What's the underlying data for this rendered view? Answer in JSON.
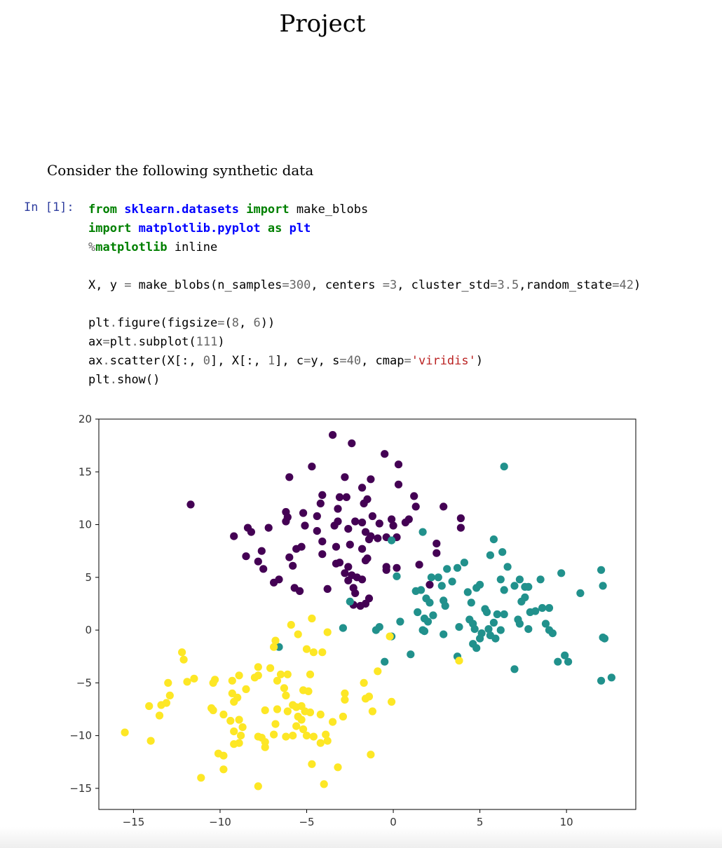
{
  "document": {
    "title": "Project",
    "intro": "Consider the following synthetic data"
  },
  "cell": {
    "prompt": "In [1]:"
  },
  "colors": {
    "class_0": "#440154",
    "class_1": "#21918c",
    "class_2": "#fde725"
  },
  "chart_data": {
    "type": "scatter",
    "title": "",
    "xlabel": "",
    "ylabel": "",
    "xlim": [
      -17,
      14
    ],
    "ylim": [
      -17,
      20
    ],
    "xticks": [
      -15,
      -10,
      -5,
      0,
      5,
      10
    ],
    "yticks": [
      -15,
      -10,
      -5,
      0,
      5,
      10,
      15,
      20
    ],
    "xtick_labels": [
      "−15",
      "−10",
      "−5",
      "0",
      "5",
      "10"
    ],
    "ytick_labels": [
      "−15",
      "−10",
      "−5",
      "0",
      "5",
      "10",
      "15",
      "20"
    ],
    "grid": false,
    "legend": "none",
    "series": [
      {
        "color": "#440154",
        "points": [
          [
            -3.5,
            18.5
          ],
          [
            -2.4,
            17.7
          ],
          [
            -0.5,
            16.7
          ],
          [
            0.3,
            15.7
          ],
          [
            -4.7,
            15.5
          ],
          [
            -6.0,
            14.5
          ],
          [
            -2.8,
            14.5
          ],
          [
            -1.3,
            14.3
          ],
          [
            -1.8,
            13.5
          ],
          [
            0.3,
            13.8
          ],
          [
            -4.1,
            12.8
          ],
          [
            -3.1,
            12.6
          ],
          [
            -2.7,
            12.6
          ],
          [
            -1.5,
            12.4
          ],
          [
            1.2,
            12.7
          ],
          [
            -4.2,
            12.0
          ],
          [
            -1.7,
            12.0
          ],
          [
            1.3,
            11.7
          ],
          [
            2.9,
            11.7
          ],
          [
            -11.7,
            11.9
          ],
          [
            -5.2,
            11.1
          ],
          [
            -3.2,
            11.5
          ],
          [
            -1.2,
            10.8
          ],
          [
            -0.1,
            10.5
          ],
          [
            -6.2,
            11.2
          ],
          [
            -6.1,
            10.7
          ],
          [
            -4.4,
            10.8
          ],
          [
            -3.2,
            10.3
          ],
          [
            -2.2,
            10.3
          ],
          [
            -1.8,
            10.2
          ],
          [
            0.7,
            10.2
          ],
          [
            0.9,
            10.5
          ],
          [
            3.9,
            10.6
          ],
          [
            -8.4,
            9.7
          ],
          [
            -7.2,
            9.7
          ],
          [
            -6.2,
            10.3
          ],
          [
            -5.1,
            9.9
          ],
          [
            -3.4,
            9.9
          ],
          [
            -0.8,
            10.1
          ],
          [
            0.0,
            9.9
          ],
          [
            3.9,
            9.7
          ],
          [
            -9.2,
            8.9
          ],
          [
            -8.2,
            9.3
          ],
          [
            -4.4,
            9.4
          ],
          [
            -2.6,
            9.6
          ],
          [
            -1.6,
            9.3
          ],
          [
            -1.3,
            8.9
          ],
          [
            -7.6,
            7.5
          ],
          [
            -5.3,
            7.9
          ],
          [
            -5.6,
            7.7
          ],
          [
            -4.1,
            8.4
          ],
          [
            -3.3,
            7.9
          ],
          [
            -2.5,
            8.1
          ],
          [
            -1.8,
            7.7
          ],
          [
            -1.4,
            8.6
          ],
          [
            -0.9,
            8.7
          ],
          [
            -0.4,
            8.8
          ],
          [
            0.2,
            8.8
          ],
          [
            2.5,
            8.2
          ],
          [
            -8.5,
            7.0
          ],
          [
            -7.8,
            6.5
          ],
          [
            -6.0,
            6.9
          ],
          [
            -4.1,
            7.2
          ],
          [
            -5.8,
            6.1
          ],
          [
            -3.3,
            6.3
          ],
          [
            -3.1,
            6.4
          ],
          [
            -1.6,
            6.6
          ],
          [
            -1.5,
            6.8
          ],
          [
            -0.4,
            6.0
          ],
          [
            0.2,
            5.9
          ],
          [
            1.5,
            6.2
          ],
          [
            -7.5,
            5.8
          ],
          [
            -6.6,
            4.8
          ],
          [
            -5.7,
            4.0
          ],
          [
            -5.4,
            3.7
          ],
          [
            -6.9,
            4.5
          ],
          [
            -2.6,
            6.0
          ],
          [
            -2.4,
            5.2
          ],
          [
            -2.1,
            5.0
          ],
          [
            -1.8,
            4.8
          ],
          [
            -2.6,
            4.7
          ],
          [
            -2.3,
            4.0
          ],
          [
            -3.8,
            3.9
          ],
          [
            -2.2,
            3.5
          ],
          [
            -2.3,
            2.4
          ],
          [
            -1.9,
            2.3
          ],
          [
            -1.6,
            2.5
          ],
          [
            -1.4,
            3.0
          ],
          [
            2.5,
            7.3
          ],
          [
            2.1,
            4.3
          ],
          [
            -0.4,
            5.7
          ],
          [
            -2.8,
            5.4
          ]
        ]
      },
      {
        "color": "#21918c",
        "points": [
          [
            6.4,
            15.5
          ],
          [
            5.8,
            8.6
          ],
          [
            6.3,
            7.4
          ],
          [
            5.6,
            7.1
          ],
          [
            1.7,
            9.3
          ],
          [
            -0.1,
            8.5
          ],
          [
            4.1,
            6.4
          ],
          [
            3.7,
            5.9
          ],
          [
            6.6,
            6.0
          ],
          [
            0.2,
            5.1
          ],
          [
            2.2,
            5.0
          ],
          [
            2.6,
            5.0
          ],
          [
            3.1,
            5.8
          ],
          [
            6.2,
            4.8
          ],
          [
            7.3,
            4.8
          ],
          [
            7.6,
            4.1
          ],
          [
            8.5,
            4.8
          ],
          [
            9.7,
            5.4
          ],
          [
            12.0,
            5.7
          ],
          [
            12.1,
            4.2
          ],
          [
            2.8,
            4.2
          ],
          [
            3.4,
            4.6
          ],
          [
            4.3,
            3.6
          ],
          [
            4.8,
            4.0
          ],
          [
            5.0,
            4.3
          ],
          [
            6.4,
            3.8
          ],
          [
            7.0,
            4.2
          ],
          [
            7.8,
            4.1
          ],
          [
            10.8,
            3.5
          ],
          [
            1.3,
            3.7
          ],
          [
            1.6,
            3.8
          ],
          [
            1.9,
            3.0
          ],
          [
            2.1,
            2.6
          ],
          [
            2.9,
            2.8
          ],
          [
            4.5,
            2.6
          ],
          [
            5.3,
            2.0
          ],
          [
            5.4,
            1.7
          ],
          [
            6.0,
            1.5
          ],
          [
            7.4,
            2.7
          ],
          [
            7.6,
            3.1
          ],
          [
            8.6,
            2.1
          ],
          [
            9.0,
            2.1
          ],
          [
            -2.5,
            2.7
          ],
          [
            1.4,
            1.7
          ],
          [
            1.8,
            1.1
          ],
          [
            2.0,
            0.8
          ],
          [
            2.3,
            1.4
          ],
          [
            3.0,
            2.3
          ],
          [
            4.4,
            1.0
          ],
          [
            4.6,
            0.6
          ],
          [
            5.8,
            0.7
          ],
          [
            6.4,
            1.5
          ],
          [
            7.2,
            1.0
          ],
          [
            7.9,
            1.7
          ],
          [
            8.2,
            1.8
          ],
          [
            8.8,
            0.6
          ],
          [
            7.3,
            0.6
          ],
          [
            7.8,
            0.1
          ],
          [
            9.0,
            0.0
          ],
          [
            9.2,
            -0.3
          ],
          [
            -2.9,
            0.2
          ],
          [
            -1.0,
            0.0
          ],
          [
            -0.8,
            0.3
          ],
          [
            0.4,
            0.8
          ],
          [
            1.7,
            0.0
          ],
          [
            2.9,
            -0.4
          ],
          [
            3.8,
            0.3
          ],
          [
            4.7,
            0.1
          ],
          [
            5.1,
            -0.3
          ],
          [
            5.5,
            0.1
          ],
          [
            5.6,
            -0.5
          ],
          [
            5.9,
            -0.8
          ],
          [
            6.2,
            0.0
          ],
          [
            4.6,
            -1.3
          ],
          [
            4.8,
            -1.7
          ],
          [
            5.0,
            -0.8
          ],
          [
            12.1,
            -0.7
          ],
          [
            12.2,
            -0.8
          ],
          [
            1.0,
            -2.3
          ],
          [
            -0.5,
            -3.0
          ],
          [
            3.7,
            -2.5
          ],
          [
            7.0,
            -3.7
          ],
          [
            9.5,
            -3.0
          ],
          [
            9.9,
            -2.4
          ],
          [
            10.1,
            -3.0
          ],
          [
            12.0,
            -4.8
          ],
          [
            12.6,
            -4.5
          ],
          [
            -6.6,
            -1.6
          ],
          [
            -0.1,
            -0.6
          ],
          [
            1.8,
            -0.1
          ]
        ]
      },
      {
        "color": "#fde725",
        "points": [
          [
            -5.9,
            0.5
          ],
          [
            -4.7,
            1.1
          ],
          [
            -5.5,
            -0.4
          ],
          [
            -6.8,
            -1.0
          ],
          [
            -6.9,
            -1.6
          ],
          [
            -3.8,
            -0.2
          ],
          [
            -5.0,
            -1.8
          ],
          [
            -4.6,
            -2.1
          ],
          [
            -4.1,
            -2.1
          ],
          [
            -0.2,
            -0.6
          ],
          [
            -12.2,
            -2.1
          ],
          [
            -12.1,
            -2.8
          ],
          [
            -13.0,
            -5.0
          ],
          [
            -12.9,
            -6.2
          ],
          [
            -13.1,
            -6.9
          ],
          [
            -13.4,
            -7.1
          ],
          [
            -14.1,
            -7.2
          ],
          [
            -13.5,
            -8.1
          ],
          [
            -11.9,
            -4.9
          ],
          [
            -11.5,
            -4.6
          ],
          [
            -10.3,
            -4.7
          ],
          [
            -10.4,
            -5.0
          ],
          [
            -9.3,
            -4.8
          ],
          [
            -8.9,
            -4.3
          ],
          [
            -7.8,
            -3.5
          ],
          [
            -7.1,
            -3.6
          ],
          [
            -7.8,
            -4.3
          ],
          [
            -6.5,
            -4.2
          ],
          [
            -6.1,
            -4.2
          ],
          [
            -4.8,
            -4.2
          ],
          [
            -6.7,
            -4.8
          ],
          [
            -6.3,
            -5.5
          ],
          [
            -5.2,
            -5.7
          ],
          [
            -4.9,
            -5.8
          ],
          [
            -8.5,
            -5.6
          ],
          [
            -9.3,
            -6.0
          ],
          [
            -9.0,
            -6.4
          ],
          [
            -9.2,
            -6.8
          ],
          [
            -10.5,
            -7.4
          ],
          [
            -10.4,
            -7.6
          ],
          [
            -6.2,
            -6.2
          ],
          [
            -5.8,
            -7.1
          ],
          [
            -5.6,
            -7.3
          ],
          [
            -5.3,
            -7.2
          ],
          [
            -5.1,
            -7.7
          ],
          [
            -4.8,
            -7.8
          ],
          [
            -7.4,
            -7.6
          ],
          [
            -6.7,
            -7.5
          ],
          [
            -6.1,
            -7.7
          ],
          [
            -5.5,
            -8.2
          ],
          [
            -5.3,
            -8.5
          ],
          [
            -4.2,
            -8.0
          ],
          [
            -3.5,
            -8.7
          ],
          [
            -2.9,
            -8.2
          ],
          [
            -2.8,
            -6.0
          ],
          [
            -2.8,
            -6.6
          ],
          [
            -1.7,
            -5.0
          ],
          [
            -1.6,
            -6.5
          ],
          [
            -1.4,
            -6.3
          ],
          [
            -1.2,
            -7.7
          ],
          [
            -0.1,
            -6.8
          ],
          [
            -0.9,
            -3.9
          ],
          [
            -9.8,
            -8.0
          ],
          [
            -9.4,
            -8.6
          ],
          [
            -8.9,
            -8.5
          ],
          [
            -8.7,
            -9.2
          ],
          [
            -9.2,
            -9.6
          ],
          [
            -8.8,
            -10.0
          ],
          [
            -6.8,
            -8.9
          ],
          [
            -5.6,
            -9.1
          ],
          [
            -5.2,
            -9.4
          ],
          [
            -5.0,
            -10.0
          ],
          [
            -4.6,
            -10.1
          ],
          [
            -3.9,
            -9.9
          ],
          [
            -3.8,
            -10.5
          ],
          [
            -4.2,
            -10.7
          ],
          [
            -8.9,
            -10.7
          ],
          [
            -9.2,
            -10.8
          ],
          [
            -7.8,
            -10.1
          ],
          [
            -7.6,
            -10.2
          ],
          [
            -7.4,
            -10.6
          ],
          [
            -7.4,
            -11.1
          ],
          [
            -6.9,
            -9.9
          ],
          [
            -6.2,
            -10.1
          ],
          [
            -5.8,
            -10.0
          ],
          [
            -10.1,
            -11.7
          ],
          [
            -9.8,
            -11.9
          ],
          [
            -9.8,
            -13.2
          ],
          [
            -11.1,
            -14.0
          ],
          [
            -7.8,
            -14.8
          ],
          [
            -4.0,
            -14.6
          ],
          [
            -4.7,
            -12.7
          ],
          [
            -3.2,
            -13.0
          ],
          [
            -1.3,
            -11.8
          ],
          [
            -15.5,
            -9.7
          ],
          [
            -14.0,
            -10.5
          ],
          [
            3.8,
            -2.9
          ],
          [
            -8.0,
            -4.5
          ]
        ]
      }
    ]
  }
}
